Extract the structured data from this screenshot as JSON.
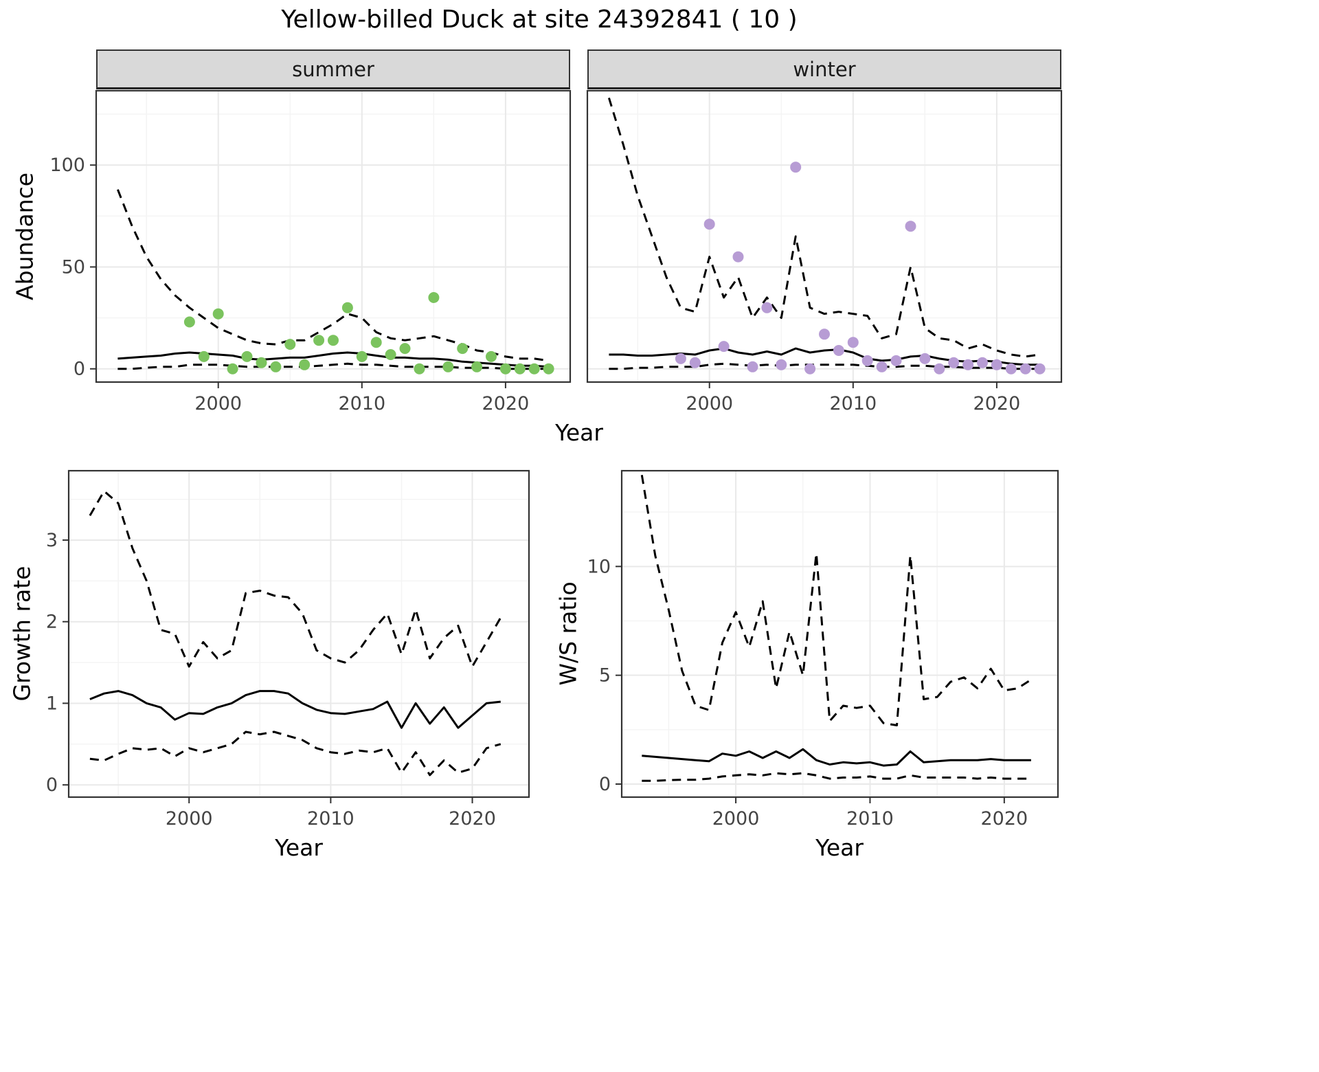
{
  "title": "Yellow-billed Duck at site 24392841 ( 10 )",
  "facets": {
    "summer": "summer",
    "winter": "winter"
  },
  "axis_titles": {
    "abundance": "Abundance",
    "year": "Year",
    "growth_rate": "Growth rate",
    "ws_ratio": "W/S ratio"
  },
  "colors": {
    "summer_points": "#7BC35E",
    "winter_points": "#B79CD4",
    "line": "#000000",
    "strip_bg": "#D9D9D9",
    "grid_major": "#E9E9E9",
    "grid_minor": "#F4F4F4",
    "panel_border": "#333333",
    "tick_text": "#444444"
  },
  "chart_data": [
    {
      "id": "abundance-summer",
      "type": "line+scatter",
      "facet_label": "summer",
      "xlabel": "Year",
      "ylabel": "Abundance",
      "xlim": [
        1991.5,
        2024.5
      ],
      "ylim": [
        -6.5,
        136.5
      ],
      "xticks": [
        2000,
        2010,
        2020
      ],
      "yticks": [
        0,
        50,
        100
      ],
      "x_minor": [
        1995,
        2005,
        2015
      ],
      "y_minor": [
        25,
        75,
        125
      ],
      "years": [
        1993,
        1994,
        1995,
        1996,
        1997,
        1998,
        1999,
        2000,
        2001,
        2002,
        2003,
        2004,
        2005,
        2006,
        2007,
        2008,
        2009,
        2010,
        2011,
        2012,
        2013,
        2014,
        2015,
        2016,
        2017,
        2018,
        2019,
        2020,
        2021,
        2022,
        2023
      ],
      "series": [
        {
          "name": "median",
          "style": "solid",
          "values": [
            5,
            5.5,
            6,
            6.5,
            7.5,
            8,
            7.5,
            7,
            6.5,
            5,
            4.5,
            5,
            5.5,
            5.5,
            6.5,
            7.5,
            8,
            7.5,
            6.5,
            5.5,
            5.5,
            5,
            5,
            4.5,
            3.5,
            3,
            2.5,
            2,
            1.5,
            1.5,
            1
          ]
        },
        {
          "name": "upper_ci",
          "style": "dashed",
          "values": [
            88,
            70,
            55,
            44,
            36,
            30,
            25,
            20,
            17,
            14,
            12.5,
            12,
            14,
            14,
            18,
            22,
            27,
            25,
            18,
            15,
            14,
            15,
            16,
            14,
            12,
            9,
            8,
            6,
            5,
            5,
            4
          ]
        },
        {
          "name": "lower_ci",
          "style": "dashed",
          "values": [
            0,
            0,
            0.5,
            1,
            1,
            2,
            2,
            2,
            1.5,
            1,
            1,
            1,
            1,
            1,
            1.5,
            2,
            2.5,
            2,
            2,
            1.5,
            1,
            1,
            1,
            1,
            0.5,
            0.5,
            0.5,
            0,
            0,
            0,
            0
          ]
        }
      ],
      "points": {
        "name": "observed-counts-summer",
        "color_key": "summer_points",
        "years": [
          1998,
          1999,
          2000,
          2001,
          2002,
          2003,
          2004,
          2005,
          2006,
          2007,
          2008,
          2009,
          2010,
          2011,
          2012,
          2013,
          2014,
          2015,
          2016,
          2017,
          2018,
          2019,
          2020,
          2021,
          2022,
          2023
        ],
        "values": [
          23,
          6,
          27,
          0,
          6,
          3,
          1,
          12,
          2,
          14,
          14,
          30,
          6,
          13,
          7,
          10,
          0,
          35,
          1,
          10,
          1,
          6,
          0,
          0,
          0,
          0
        ]
      }
    },
    {
      "id": "abundance-winter",
      "type": "line+scatter",
      "facet_label": "winter",
      "xlabel": "Year",
      "ylabel": "Abundance",
      "xlim": [
        1991.5,
        2024.5
      ],
      "ylim": [
        -6.5,
        136.5
      ],
      "xticks": [
        2000,
        2010,
        2020
      ],
      "yticks": [
        0,
        50,
        100
      ],
      "x_minor": [
        1995,
        2005,
        2015
      ],
      "y_minor": [
        25,
        75,
        125
      ],
      "years": [
        1993,
        1994,
        1995,
        1996,
        1997,
        1998,
        1999,
        2000,
        2001,
        2002,
        2003,
        2004,
        2005,
        2006,
        2007,
        2008,
        2009,
        2010,
        2011,
        2012,
        2013,
        2014,
        2015,
        2016,
        2017,
        2018,
        2019,
        2020,
        2021,
        2022,
        2023
      ],
      "series": [
        {
          "name": "median",
          "style": "solid",
          "values": [
            7,
            7,
            6.5,
            6.5,
            7,
            7.5,
            7,
            9,
            10,
            8,
            7,
            8.5,
            7,
            10,
            8,
            9,
            9.5,
            8,
            5,
            4,
            4.5,
            6,
            6.5,
            5,
            4,
            3.5,
            4,
            3.5,
            2.5,
            2,
            2
          ]
        },
        {
          "name": "upper_ci",
          "style": "dashed",
          "values": [
            133,
            110,
            85,
            65,
            45,
            30,
            28,
            55,
            35,
            45,
            25,
            35,
            25,
            65,
            30,
            27,
            28,
            27,
            26,
            15,
            17,
            50,
            20,
            15,
            14,
            10,
            12,
            9,
            7,
            6,
            7
          ]
        },
        {
          "name": "lower_ci",
          "style": "dashed",
          "values": [
            0,
            0,
            0.5,
            0.5,
            1,
            1,
            1,
            2,
            2.5,
            2,
            1.5,
            2,
            1.5,
            2,
            2,
            2,
            2,
            2,
            1.5,
            1,
            1,
            1.5,
            1.5,
            1,
            1,
            0.5,
            0.5,
            0.5,
            0,
            0,
            0
          ]
        }
      ],
      "points": {
        "name": "observed-counts-winter",
        "color_key": "winter_points",
        "years": [
          1998,
          1999,
          2000,
          2001,
          2002,
          2003,
          2004,
          2005,
          2006,
          2007,
          2008,
          2009,
          2010,
          2011,
          2012,
          2013,
          2014,
          2015,
          2016,
          2017,
          2018,
          2019,
          2020,
          2021,
          2022,
          2023
        ],
        "values": [
          5,
          3,
          71,
          11,
          55,
          1,
          30,
          2,
          99,
          0,
          17,
          9,
          13,
          4,
          1,
          4,
          70,
          5,
          0,
          3,
          2,
          3,
          2,
          0,
          0,
          0
        ]
      }
    },
    {
      "id": "growth-rate",
      "type": "line",
      "facet_label": "",
      "xlabel": "Year",
      "ylabel": "Growth rate",
      "xlim": [
        1991.5,
        2024
      ],
      "ylim": [
        -0.15,
        3.85
      ],
      "xticks": [
        2000,
        2010,
        2020
      ],
      "yticks": [
        0,
        1,
        2,
        3
      ],
      "x_minor": [
        1995,
        2005,
        2015
      ],
      "y_minor": [
        0.5,
        1.5,
        2.5,
        3.5
      ],
      "years": [
        1993,
        1994,
        1995,
        1996,
        1997,
        1998,
        1999,
        2000,
        2001,
        2002,
        2003,
        2004,
        2005,
        2006,
        2007,
        2008,
        2009,
        2010,
        2011,
        2012,
        2013,
        2014,
        2015,
        2016,
        2017,
        2018,
        2019,
        2020,
        2021,
        2022
      ],
      "series": [
        {
          "name": "median",
          "style": "solid",
          "values": [
            1.05,
            1.12,
            1.15,
            1.1,
            1.0,
            0.95,
            0.8,
            0.88,
            0.87,
            0.95,
            1.0,
            1.1,
            1.15,
            1.15,
            1.12,
            1.0,
            0.92,
            0.88,
            0.87,
            0.9,
            0.93,
            1.02,
            0.7,
            1.0,
            0.75,
            0.95,
            0.7,
            0.85,
            1.0,
            1.02
          ]
        },
        {
          "name": "upper_ci",
          "style": "dashed",
          "values": [
            3.3,
            3.6,
            3.45,
            2.9,
            2.5,
            1.9,
            1.85,
            1.45,
            1.75,
            1.55,
            1.65,
            2.35,
            2.38,
            2.32,
            2.3,
            2.1,
            1.65,
            1.55,
            1.5,
            1.65,
            1.9,
            2.1,
            1.6,
            2.15,
            1.55,
            1.8,
            1.95,
            1.45,
            1.75,
            2.05
          ]
        },
        {
          "name": "lower_ci",
          "style": "dashed",
          "values": [
            0.32,
            0.3,
            0.38,
            0.45,
            0.43,
            0.45,
            0.35,
            0.45,
            0.4,
            0.45,
            0.5,
            0.65,
            0.62,
            0.65,
            0.6,
            0.55,
            0.45,
            0.4,
            0.38,
            0.42,
            0.4,
            0.45,
            0.15,
            0.4,
            0.12,
            0.3,
            0.15,
            0.2,
            0.45,
            0.5
          ]
        }
      ]
    },
    {
      "id": "ws-ratio",
      "type": "line",
      "facet_label": "",
      "xlabel": "Year",
      "ylabel": "W/S ratio",
      "xlim": [
        1991.5,
        2024
      ],
      "ylim": [
        -0.6,
        14.4
      ],
      "xticks": [
        2000,
        2010,
        2020
      ],
      "yticks": [
        0,
        5,
        10
      ],
      "x_minor": [
        1995,
        2005,
        2015
      ],
      "y_minor": [
        2.5,
        7.5,
        12.5
      ],
      "years": [
        1993,
        1994,
        1995,
        1996,
        1997,
        1998,
        1999,
        2000,
        2001,
        2002,
        2003,
        2004,
        2005,
        2006,
        2007,
        2008,
        2009,
        2010,
        2011,
        2012,
        2013,
        2014,
        2015,
        2016,
        2017,
        2018,
        2019,
        2020,
        2021,
        2022
      ],
      "series": [
        {
          "name": "median",
          "style": "solid",
          "values": [
            1.3,
            1.25,
            1.2,
            1.15,
            1.1,
            1.05,
            1.4,
            1.3,
            1.5,
            1.2,
            1.5,
            1.2,
            1.6,
            1.1,
            0.9,
            1.0,
            0.95,
            1.0,
            0.85,
            0.9,
            1.5,
            1.0,
            1.05,
            1.1,
            1.1,
            1.1,
            1.15,
            1.1,
            1.1,
            1.1
          ]
        },
        {
          "name": "upper_ci",
          "style": "dashed",
          "values": [
            14.2,
            10.5,
            8.0,
            5.2,
            3.6,
            3.4,
            6.5,
            7.9,
            6.3,
            8.4,
            4.4,
            7.0,
            5.0,
            10.6,
            2.9,
            3.6,
            3.5,
            3.6,
            2.8,
            2.7,
            10.5,
            3.9,
            4.0,
            4.7,
            4.9,
            4.4,
            5.3,
            4.3,
            4.4,
            4.8
          ]
        },
        {
          "name": "lower_ci",
          "style": "dashed",
          "values": [
            0.15,
            0.15,
            0.18,
            0.2,
            0.2,
            0.25,
            0.35,
            0.4,
            0.45,
            0.4,
            0.5,
            0.45,
            0.5,
            0.4,
            0.25,
            0.3,
            0.3,
            0.35,
            0.25,
            0.25,
            0.4,
            0.3,
            0.3,
            0.3,
            0.3,
            0.25,
            0.3,
            0.25,
            0.25,
            0.25
          ]
        }
      ]
    }
  ]
}
